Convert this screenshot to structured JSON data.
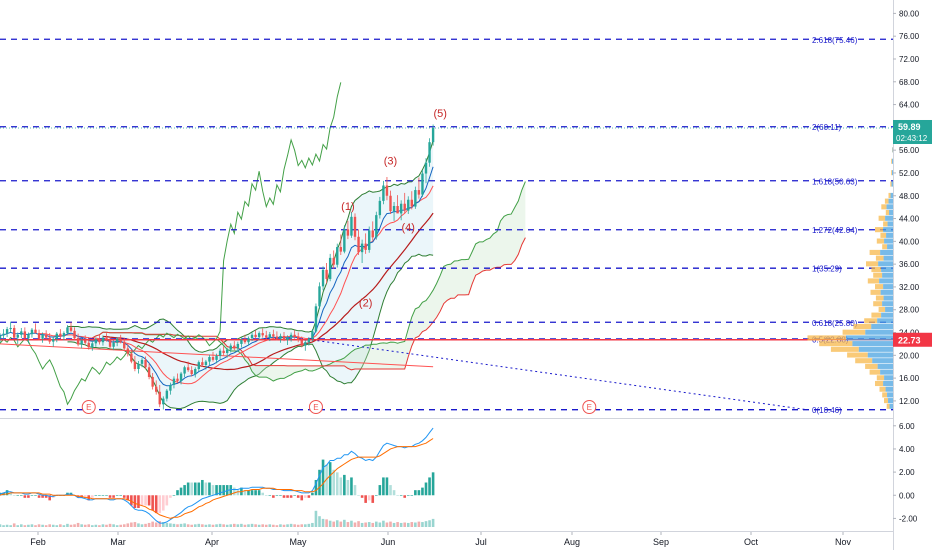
{
  "chart_data": {
    "type": "candlestick",
    "price_axis": {
      "ticks": [
        "80.00",
        "76.00",
        "72.00",
        "68.00",
        "64.00",
        "56.00",
        "52.00",
        "48.00",
        "44.00",
        "40.00",
        "36.00",
        "32.00",
        "28.00",
        "24.00",
        "20.00",
        "16.00",
        "12.00"
      ],
      "range": [
        9,
        82
      ]
    },
    "macd_axis": {
      "ticks": [
        "6.00",
        "4.00",
        "2.00",
        "0.00",
        "-2.00"
      ],
      "range": [
        -3,
        6.5
      ]
    },
    "time_axis": {
      "labels": [
        "Feb",
        "Mar",
        "Apr",
        "May",
        "Jun",
        "Jul",
        "Aug",
        "Sep",
        "Oct",
        "Nov"
      ]
    },
    "fib_levels": [
      {
        "label": "2.618(75.46)",
        "value": 75.46
      },
      {
        "label": "2(60.11)",
        "value": 60.11
      },
      {
        "label": "1.618(50.63)",
        "value": 50.63
      },
      {
        "label": "1.272(42.04)",
        "value": 42.04
      },
      {
        "label": "1(35.29)",
        "value": 35.29
      },
      {
        "label": "0.618(25.80)",
        "value": 25.8
      },
      {
        "label": "0.5(22.88)",
        "value": 22.88
      },
      {
        "label": "0(10.46)",
        "value": 10.46
      }
    ],
    "wave_labels": [
      {
        "label": "(1)",
        "t": 98,
        "price": 45.5
      },
      {
        "label": "(2)",
        "t": 103,
        "price": 28.6
      },
      {
        "label": "(3)",
        "t": 110,
        "price": 53.5
      },
      {
        "label": "(4)",
        "t": 115,
        "price": 41.8
      },
      {
        "label": "(5)",
        "t": 124,
        "price": 61.8
      }
    ],
    "earnings_markers": [
      {
        "label": "E",
        "t": 25
      },
      {
        "label": "E",
        "t": 89
      },
      {
        "label": "E",
        "t": 166
      }
    ],
    "last_price": {
      "label": "59.89",
      "countdown": "02:43:12",
      "value": 59.89
    },
    "current_level": {
      "label": "22.73",
      "value": 22.73
    },
    "candles": [
      [
        23.0,
        23.9,
        22.2,
        23.5
      ],
      [
        23.5,
        24.6,
        22.8,
        23.8
      ],
      [
        23.8,
        25.0,
        23.2,
        24.6
      ],
      [
        24.6,
        25.9,
        24.0,
        24.8
      ],
      [
        24.8,
        25.3,
        22.9,
        23.1
      ],
      [
        23.1,
        24.0,
        22.0,
        23.6
      ],
      [
        23.6,
        24.8,
        23.0,
        24.2
      ],
      [
        24.2,
        24.9,
        22.8,
        23.0
      ],
      [
        23.0,
        24.0,
        22.1,
        23.7
      ],
      [
        23.7,
        24.8,
        23.1,
        24.5
      ],
      [
        24.5,
        25.6,
        23.8,
        23.9
      ],
      [
        23.9,
        24.5,
        22.6,
        22.9
      ],
      [
        22.9,
        24.0,
        22.2,
        23.6
      ],
      [
        23.6,
        24.4,
        22.8,
        23.1
      ],
      [
        23.1,
        23.9,
        22.0,
        22.4
      ],
      [
        22.4,
        23.3,
        21.5,
        22.9
      ],
      [
        22.9,
        24.1,
        22.3,
        23.8
      ],
      [
        23.8,
        24.6,
        23.0,
        23.3
      ],
      [
        23.3,
        24.2,
        22.6,
        23.9
      ],
      [
        23.9,
        25.3,
        23.5,
        24.9
      ],
      [
        24.9,
        25.8,
        24.1,
        24.3
      ],
      [
        24.3,
        24.9,
        22.7,
        23.0
      ],
      [
        23.0,
        23.8,
        21.6,
        21.9
      ],
      [
        21.9,
        23.0,
        21.2,
        22.6
      ],
      [
        22.6,
        23.5,
        21.8,
        22.2
      ],
      [
        22.2,
        23.2,
        21.0,
        21.4
      ],
      [
        21.4,
        22.6,
        20.8,
        22.1
      ],
      [
        22.1,
        23.1,
        21.5,
        22.8
      ],
      [
        22.8,
        23.6,
        21.9,
        22.3
      ],
      [
        22.3,
        23.5,
        21.7,
        23.1
      ],
      [
        23.1,
        23.9,
        22.4,
        22.6
      ],
      [
        22.6,
        23.2,
        21.2,
        21.5
      ],
      [
        21.5,
        22.6,
        20.9,
        22.2
      ],
      [
        22.2,
        23.2,
        21.6,
        22.9
      ],
      [
        22.9,
        23.6,
        22.1,
        22.4
      ],
      [
        22.4,
        23.1,
        20.9,
        21.2
      ],
      [
        21.2,
        22.0,
        19.8,
        20.3
      ],
      [
        20.3,
        21.1,
        18.6,
        18.9
      ],
      [
        18.9,
        19.9,
        17.2,
        17.6
      ],
      [
        17.6,
        19.0,
        16.8,
        18.5
      ],
      [
        18.5,
        19.6,
        17.9,
        19.2
      ],
      [
        19.2,
        19.8,
        17.6,
        17.9
      ],
      [
        17.9,
        18.6,
        15.8,
        16.2
      ],
      [
        16.2,
        16.9,
        14.0,
        14.5
      ],
      [
        14.5,
        15.6,
        13.1,
        13.6
      ],
      [
        13.6,
        14.8,
        10.9,
        11.4
      ],
      [
        11.4,
        12.8,
        10.5,
        12.4
      ],
      [
        12.4,
        14.1,
        11.9,
        13.8
      ],
      [
        13.8,
        15.2,
        13.1,
        14.8
      ],
      [
        14.8,
        16.3,
        14.2,
        15.9
      ],
      [
        15.9,
        16.8,
        15.1,
        15.5
      ],
      [
        15.5,
        17.1,
        14.9,
        16.8
      ],
      [
        16.8,
        18.2,
        16.2,
        17.9
      ],
      [
        17.9,
        18.9,
        17.1,
        17.4
      ],
      [
        17.4,
        18.1,
        16.3,
        16.7
      ],
      [
        16.7,
        17.9,
        16.1,
        17.6
      ],
      [
        17.6,
        19.1,
        17.2,
        18.8
      ],
      [
        18.8,
        19.6,
        18.0,
        18.3
      ],
      [
        18.3,
        19.2,
        17.5,
        18.9
      ],
      [
        18.9,
        20.1,
        18.3,
        19.7
      ],
      [
        19.7,
        20.6,
        18.9,
        19.2
      ],
      [
        19.2,
        20.3,
        18.6,
        19.9
      ],
      [
        19.9,
        21.2,
        19.3,
        20.8
      ],
      [
        20.8,
        21.6,
        20.0,
        20.4
      ],
      [
        20.4,
        21.3,
        19.6,
        21.0
      ],
      [
        21.0,
        22.1,
        20.5,
        21.7
      ],
      [
        21.7,
        22.5,
        20.9,
        21.2
      ],
      [
        21.2,
        22.4,
        20.6,
        22.0
      ],
      [
        22.0,
        23.1,
        21.4,
        22.7
      ],
      [
        22.7,
        23.6,
        22.0,
        22.3
      ],
      [
        22.3,
        23.3,
        21.7,
        23.0
      ],
      [
        23.0,
        24.0,
        22.5,
        23.6
      ],
      [
        23.6,
        24.4,
        22.9,
        23.2
      ],
      [
        23.2,
        24.2,
        22.6,
        23.9
      ],
      [
        23.9,
        24.7,
        23.1,
        23.5
      ],
      [
        23.5,
        24.3,
        22.7,
        23.1
      ],
      [
        23.1,
        24.1,
        22.5,
        23.7
      ],
      [
        23.7,
        24.5,
        22.9,
        23.3
      ],
      [
        23.3,
        24.2,
        22.6,
        22.9
      ],
      [
        22.9,
        23.8,
        22.2,
        23.4
      ],
      [
        23.4,
        24.1,
        22.5,
        22.7
      ],
      [
        22.7,
        23.5,
        21.8,
        23.1
      ],
      [
        23.1,
        24.0,
        22.4,
        23.6
      ],
      [
        23.6,
        24.4,
        22.9,
        23.2
      ],
      [
        23.2,
        24.0,
        22.3,
        22.6
      ],
      [
        22.6,
        23.3,
        21.4,
        21.7
      ],
      [
        21.7,
        22.6,
        20.8,
        22.3
      ],
      [
        22.3,
        23.2,
        21.7,
        22.9
      ],
      [
        22.9,
        24.6,
        22.5,
        24.2
      ],
      [
        24.2,
        29.1,
        24.0,
        28.6
      ],
      [
        28.6,
        32.8,
        28.1,
        32.1
      ],
      [
        32.1,
        35.6,
        31.4,
        35.0
      ],
      [
        35.0,
        36.2,
        32.6,
        33.4
      ],
      [
        33.4,
        37.8,
        33.0,
        37.1
      ],
      [
        37.1,
        38.4,
        35.2,
        35.9
      ],
      [
        35.9,
        39.6,
        35.4,
        39.0
      ],
      [
        39.0,
        41.2,
        37.6,
        38.2
      ],
      [
        38.2,
        42.8,
        37.9,
        42.1
      ],
      [
        42.1,
        43.6,
        40.4,
        41.0
      ],
      [
        41.0,
        45.1,
        40.6,
        44.3
      ],
      [
        44.3,
        44.9,
        40.2,
        40.8
      ],
      [
        40.8,
        42.1,
        37.6,
        38.1
      ],
      [
        38.1,
        40.3,
        36.2,
        39.6
      ],
      [
        39.6,
        41.4,
        37.8,
        38.5
      ],
      [
        38.5,
        42.6,
        38.0,
        41.9
      ],
      [
        41.9,
        43.5,
        40.1,
        40.7
      ],
      [
        40.7,
        45.2,
        40.3,
        44.6
      ],
      [
        44.6,
        47.8,
        44.0,
        47.1
      ],
      [
        47.1,
        50.6,
        46.5,
        49.8
      ],
      [
        49.8,
        51.3,
        47.2,
        48.0
      ],
      [
        48.0,
        48.9,
        44.8,
        45.3
      ],
      [
        45.3,
        46.9,
        43.6,
        46.2
      ],
      [
        46.2,
        48.1,
        45.1,
        44.9
      ],
      [
        44.9,
        47.2,
        43.7,
        46.6
      ],
      [
        46.6,
        48.5,
        44.9,
        45.4
      ],
      [
        45.4,
        47.9,
        44.8,
        47.3
      ],
      [
        47.3,
        48.8,
        45.6,
        46.1
      ],
      [
        46.1,
        49.6,
        45.7,
        49.0
      ],
      [
        49.0,
        51.2,
        47.5,
        48.2
      ],
      [
        48.2,
        52.5,
        47.8,
        51.9
      ],
      [
        51.9,
        54.6,
        50.2,
        53.8
      ],
      [
        53.8,
        58.1,
        53.1,
        57.4
      ],
      [
        57.4,
        60.5,
        56.8,
        59.89
      ]
    ],
    "macd_line": [
      0.1,
      0.2,
      0.3,
      0.3,
      0.2,
      0.2,
      0.2,
      0.1,
      0.1,
      0.2,
      0.2,
      0.1,
      0.0,
      0.0,
      -0.1,
      -0.1,
      0.0,
      0.0,
      0.0,
      0.1,
      0.1,
      0.0,
      -0.2,
      -0.2,
      -0.3,
      -0.4,
      -0.4,
      -0.3,
      -0.3,
      -0.3,
      -0.3,
      -0.4,
      -0.4,
      -0.3,
      -0.3,
      -0.4,
      -0.6,
      -0.9,
      -1.2,
      -1.3,
      -1.3,
      -1.4,
      -1.6,
      -1.9,
      -2.2,
      -2.4,
      -2.4,
      -2.3,
      -2.1,
      -1.9,
      -1.7,
      -1.5,
      -1.2,
      -1.0,
      -0.9,
      -0.7,
      -0.5,
      -0.3,
      -0.2,
      -0.1,
      0.0,
      0.1,
      0.2,
      0.3,
      0.4,
      0.5,
      0.5,
      0.5,
      0.6,
      0.6,
      0.6,
      0.7,
      0.7,
      0.7,
      0.7,
      0.6,
      0.6,
      0.5,
      0.5,
      0.5,
      0.4,
      0.4,
      0.4,
      0.4,
      0.3,
      0.2,
      0.2,
      0.2,
      0.4,
      1.0,
      1.7,
      2.4,
      2.6,
      3.0,
      3.0,
      3.2,
      3.2,
      3.5,
      3.5,
      3.8,
      3.6,
      3.3,
      3.2,
      3.0,
      3.1,
      3.0,
      3.3,
      3.8,
      4.3,
      4.5,
      4.4,
      4.3,
      4.2,
      4.2,
      4.1,
      4.2,
      4.2,
      4.4,
      4.5,
      4.7,
      5.0,
      5.4,
      5.8
    ],
    "signal_line": [
      0.0,
      0.1,
      0.1,
      0.2,
      0.2,
      0.2,
      0.2,
      0.2,
      0.2,
      0.2,
      0.2,
      0.2,
      0.1,
      0.1,
      0.1,
      0.0,
      0.0,
      0.0,
      0.0,
      0.0,
      0.0,
      0.0,
      -0.1,
      -0.1,
      -0.2,
      -0.2,
      -0.3,
      -0.3,
      -0.3,
      -0.3,
      -0.3,
      -0.3,
      -0.3,
      -0.3,
      -0.3,
      -0.3,
      -0.4,
      -0.5,
      -0.7,
      -0.8,
      -0.9,
      -1.0,
      -1.2,
      -1.3,
      -1.5,
      -1.7,
      -1.8,
      -1.9,
      -2.0,
      -1.9,
      -1.9,
      -1.8,
      -1.6,
      -1.5,
      -1.4,
      -1.2,
      -1.0,
      -0.9,
      -0.7,
      -0.6,
      -0.4,
      -0.3,
      -0.2,
      -0.1,
      0.0,
      0.1,
      0.2,
      0.3,
      0.3,
      0.4,
      0.4,
      0.5,
      0.5,
      0.5,
      0.6,
      0.6,
      0.6,
      0.6,
      0.5,
      0.5,
      0.5,
      0.5,
      0.5,
      0.4,
      0.4,
      0.4,
      0.3,
      0.3,
      0.3,
      0.4,
      0.7,
      1.0,
      1.4,
      1.7,
      2.0,
      2.3,
      2.5,
      2.7,
      2.9,
      3.1,
      3.2,
      3.3,
      3.3,
      3.3,
      3.3,
      3.3,
      3.3,
      3.4,
      3.6,
      3.8,
      4.0,
      4.1,
      4.2,
      4.2,
      4.2,
      4.2,
      4.2,
      4.2,
      4.3,
      4.4,
      4.5,
      4.7,
      4.9
    ],
    "volume": [
      0.3,
      0.2,
      0.25,
      0.2,
      0.4,
      0.2,
      0.3,
      0.2,
      0.25,
      0.3,
      0.2,
      0.3,
      0.25,
      0.2,
      0.3,
      0.25,
      0.2,
      0.3,
      0.2,
      0.35,
      0.25,
      0.3,
      0.45,
      0.3,
      0.25,
      0.3,
      0.2,
      0.25,
      0.2,
      0.3,
      0.25,
      0.35,
      0.3,
      0.2,
      0.25,
      0.3,
      0.4,
      0.5,
      0.55,
      0.4,
      0.3,
      0.35,
      0.45,
      0.6,
      0.5,
      0.65,
      0.55,
      0.45,
      0.4,
      0.35,
      0.3,
      0.35,
      0.4,
      0.3,
      0.25,
      0.3,
      0.35,
      0.3,
      0.25,
      0.3,
      0.25,
      0.3,
      0.35,
      0.3,
      0.25,
      0.3,
      0.35,
      0.3,
      0.35,
      0.25,
      0.3,
      0.35,
      0.3,
      0.25,
      0.3,
      0.25,
      0.3,
      0.25,
      0.2,
      0.3,
      0.25,
      0.3,
      0.35,
      0.3,
      0.25,
      0.3,
      0.3,
      0.35,
      0.45,
      1.8,
      1.2,
      0.9,
      0.85,
      0.7,
      0.6,
      0.75,
      0.6,
      0.8,
      0.55,
      0.7,
      0.5,
      0.65,
      0.45,
      0.5,
      0.55,
      0.45,
      0.6,
      0.5,
      0.7,
      0.5,
      0.6,
      0.45,
      0.55,
      0.45,
      0.5,
      0.45,
      0.55,
      0.5,
      0.6,
      0.55,
      0.65,
      0.75,
      0.9
    ]
  },
  "colors": {
    "up": "#26a69a",
    "down": "#ef5350",
    "fib": "#1a1acb",
    "bollinger": "#7ba3c9",
    "ichimoku_green": "#43a047",
    "ichimoku_red": "#e53935",
    "ma_dark_red": "#b71c1c",
    "ma_red": "#ff5252",
    "ma_blue": "#1565c0",
    "macd": "#2196f3",
    "signal": "#ff6d00",
    "price_tag": "#26a69a",
    "level_tag": "#f23645"
  }
}
